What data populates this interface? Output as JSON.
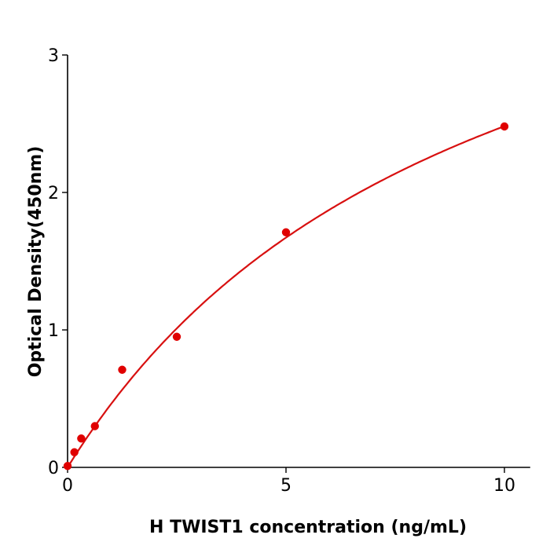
{
  "chart_data": {
    "type": "scatter",
    "title": "",
    "xlabel": "H  TWIST1 concentration (ng/mL)",
    "ylabel": "Optical Density(450nm)",
    "xlim": [
      0,
      10.5
    ],
    "ylim": [
      0,
      3
    ],
    "xticks": [
      0,
      5,
      10
    ],
    "yticks": [
      0,
      1,
      2,
      3
    ],
    "grid": false,
    "colors": {
      "points": "#e00000",
      "curve": "#d81010",
      "axis": "#000000"
    },
    "points": [
      {
        "x": 0,
        "y": 0.01
      },
      {
        "x": 0.156,
        "y": 0.11
      },
      {
        "x": 0.3125,
        "y": 0.21
      },
      {
        "x": 0.625,
        "y": 0.3
      },
      {
        "x": 1.25,
        "y": 0.71
      },
      {
        "x": 2.5,
        "y": 0.95
      },
      {
        "x": 5,
        "y": 1.71
      },
      {
        "x": 10,
        "y": 2.48
      }
    ],
    "fit": {
      "model": "hyperbolic",
      "vmax": 4.82,
      "k": 9.42,
      "xrange": [
        0,
        10
      ]
    }
  }
}
